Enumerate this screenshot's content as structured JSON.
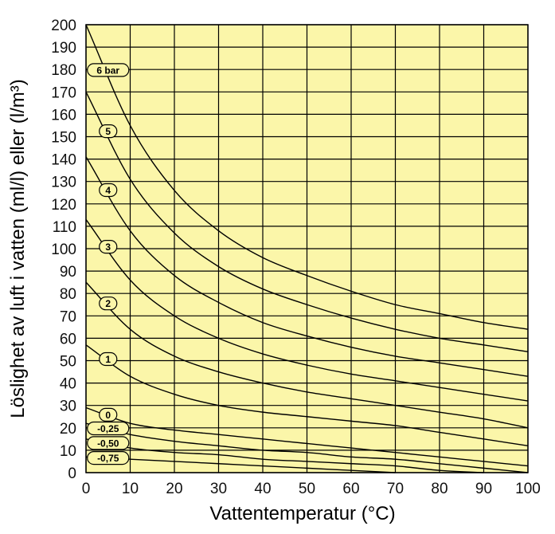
{
  "chart_data": {
    "type": "line",
    "title": "",
    "xlabel": "Vattentemperatur (°C)",
    "ylabel": "Löslighet av luft i vatten (ml/l) eller (l/m³)",
    "xlim": [
      0,
      100
    ],
    "ylim": [
      0,
      200
    ],
    "x_ticks": [
      "0",
      "10",
      "20",
      "30",
      "40",
      "50",
      "60",
      "70",
      "80",
      "90",
      "100"
    ],
    "y_ticks": [
      "0",
      "10",
      "20",
      "30",
      "40",
      "50",
      "60",
      "70",
      "80",
      "90",
      "100",
      "110",
      "120",
      "130",
      "140",
      "150",
      "160",
      "170",
      "180",
      "190",
      "200"
    ],
    "grid": true,
    "colors": {
      "plot_bg": "#fbf6a9",
      "grid": "#000000",
      "line": "#000000",
      "label_bg": "#fbf6a9"
    },
    "x": [
      0,
      10,
      20,
      30,
      40,
      50,
      60,
      70,
      80,
      90,
      100
    ],
    "series": [
      {
        "name": "6 bar",
        "values": [
          200,
          155,
          126,
          108,
          96,
          88,
          81,
          75,
          71,
          67,
          64
        ]
      },
      {
        "name": "5",
        "values": [
          170,
          131,
          107,
          92,
          82,
          75,
          69,
          64,
          60,
          57,
          54
        ]
      },
      {
        "name": "4",
        "values": [
          141,
          108,
          88,
          76,
          67,
          61,
          56,
          52,
          49,
          46,
          43
        ]
      },
      {
        "name": "3",
        "values": [
          113,
          86,
          70,
          60,
          53,
          48,
          44,
          41,
          38,
          35,
          32
        ]
      },
      {
        "name": "2",
        "values": [
          85,
          64,
          52,
          45,
          40,
          36,
          33,
          30,
          27,
          24,
          20
        ]
      },
      {
        "name": "1",
        "values": [
          57,
          43,
          35,
          30,
          27,
          25,
          23,
          21,
          18,
          15,
          12
        ]
      },
      {
        "name": "0",
        "values": [
          29,
          22,
          19,
          17,
          15,
          13,
          11,
          9,
          7,
          5,
          3
        ]
      },
      {
        "name": "-0,25",
        "values": [
          22,
          17,
          14,
          12,
          10,
          9,
          7,
          6,
          4,
          2,
          0
        ]
      },
      {
        "name": "-0,50",
        "values": [
          15,
          11,
          9,
          8,
          6,
          5,
          4,
          3,
          1,
          0,
          null
        ]
      },
      {
        "name": "-0,75",
        "values": [
          7,
          6,
          5,
          4,
          3,
          2,
          1,
          0,
          null,
          null,
          null
        ]
      }
    ]
  }
}
